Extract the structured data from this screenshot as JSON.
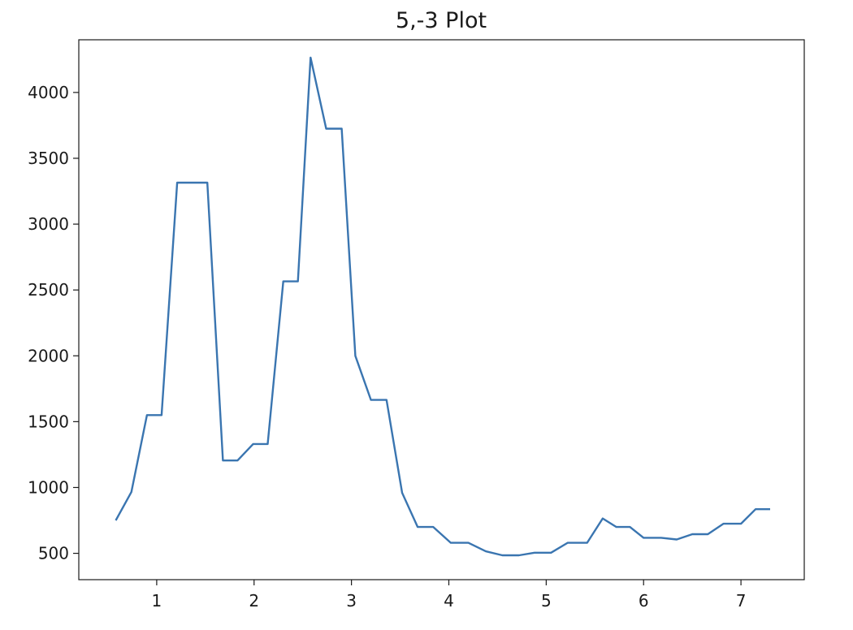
{
  "chart_data": {
    "type": "line",
    "title": "5,-3 Plot",
    "xlabel": "",
    "ylabel": "",
    "xlim": [
      0.2,
      7.65
    ],
    "ylim": [
      300,
      4400
    ],
    "x_ticks": [
      1,
      2,
      3,
      4,
      5,
      6,
      7
    ],
    "y_ticks": [
      500,
      1000,
      1500,
      2000,
      2500,
      3000,
      3500,
      4000
    ],
    "grid": false,
    "series": [
      {
        "color": "#3a75b0",
        "x": [
          0.58,
          0.74,
          0.9,
          1.05,
          1.21,
          1.36,
          1.52,
          1.68,
          1.83,
          1.99,
          2.14,
          2.3,
          2.45,
          2.58,
          2.74,
          2.9,
          3.04,
          3.2,
          3.36,
          3.52,
          3.68,
          3.84,
          4.02,
          4.2,
          4.38,
          4.55,
          4.72,
          4.88,
          5.05,
          5.22,
          5.42,
          5.58,
          5.72,
          5.86,
          6.0,
          6.18,
          6.34,
          6.5,
          6.66,
          6.82,
          7.0,
          7.15,
          7.3
        ],
        "y": [
          750,
          965,
          1550,
          1550,
          3315,
          3315,
          3315,
          1205,
          1205,
          1330,
          1330,
          2565,
          2565,
          4265,
          3725,
          3725,
          2000,
          1665,
          1665,
          960,
          700,
          700,
          580,
          580,
          515,
          485,
          485,
          505,
          505,
          580,
          580,
          765,
          700,
          700,
          618,
          618,
          605,
          645,
          645,
          725,
          725,
          835,
          835
        ]
      }
    ]
  }
}
